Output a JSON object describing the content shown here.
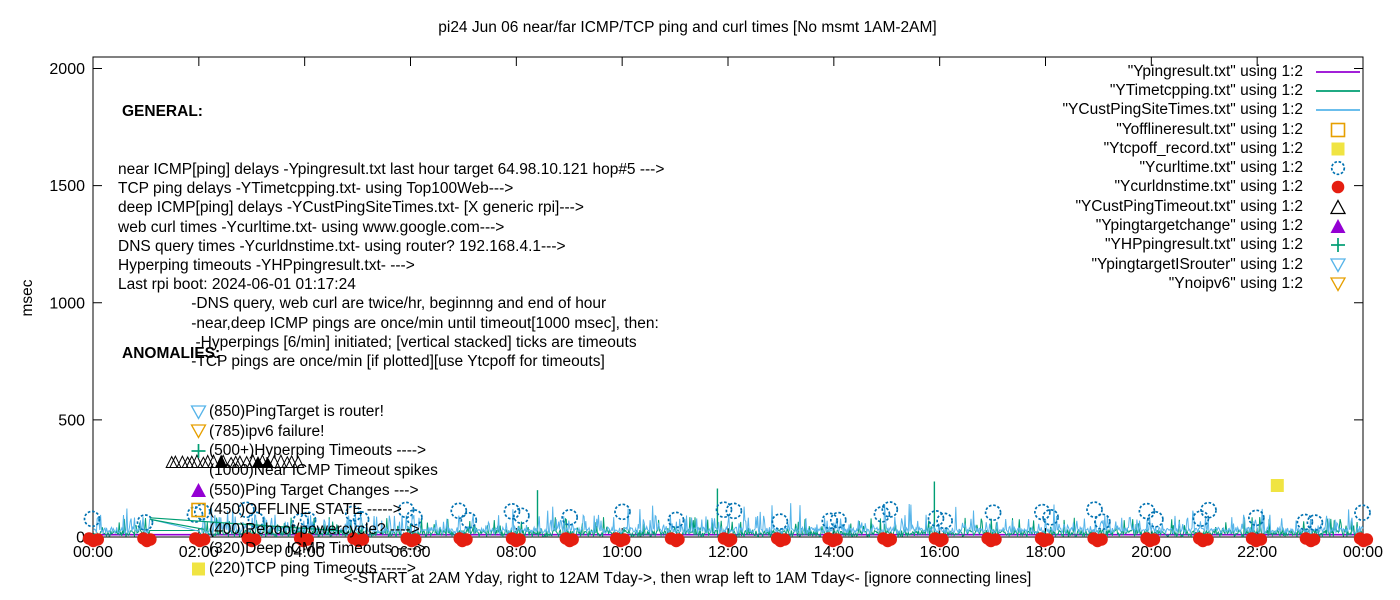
{
  "title": "pi24 Jun 06  near/far ICMP/TCP ping and curl times [No msmt 1AM-2AM]",
  "y_axis_label": "msec",
  "x_axis_label": "<-START at 2AM Yday, right to 12AM Tday->, then wrap left to 1AM Tday<- [ignore connecting lines]",
  "palette": {
    "purple": "#9400d3",
    "teal": "#009e73",
    "skyblue": "#56b4e9",
    "orange": "#e69f00",
    "yellow": "#f0e442",
    "blue": "#0072b2",
    "red": "#e51e10",
    "black": "#000000"
  },
  "general": {
    "heading": "GENERAL:",
    "lines": [
      "near ICMP[ping] delays -Ypingresult.txt last hour target 64.98.10.121 hop#5 --->",
      "TCP ping delays -YTimetcpping.txt- using Top100Web--->",
      "deep ICMP[ping] delays -YCustPingSiteTimes.txt- [X generic rpi]--->",
      "web curl times -Ycurltime.txt- using www.google.com--->",
      "DNS query times -Ycurldnstime.txt- using router? 192.168.4.1--->",
      "Hyperping timeouts -YHPpingresult.txt- --->",
      "Last rpi boot: 2024-06-01 01:17:24",
      "                 -DNS query, web curl are twice/hr, beginnng and end of hour",
      "                 -near,deep ICMP pings are once/min until timeout[1000 msec], then:",
      "                  -Hyperpings [6/min] initiated; [vertical stacked] ticks are timeouts",
      "                 -TCP pings are once/min [if plotted][use Ytcpoff for timeouts]"
    ]
  },
  "anomalies": {
    "heading": "ANOMALIES:",
    "items": [
      {
        "marker": "triangle-down-open",
        "color": "skyblue",
        "label": "(850)PingTarget is router!"
      },
      {
        "marker": "triangle-down-open",
        "color": "orange",
        "label": "(785)ipv6 failure!"
      },
      {
        "marker": "plus",
        "color": "teal",
        "label": "(500+)Hyperping Timeouts ---->"
      },
      {
        "marker": "none",
        "color": "black",
        "label": "(1000)Near ICMP Timeout spikes"
      },
      {
        "marker": "triangle-up-filled",
        "color": "purple",
        "label": "(550)Ping Target Changes --->"
      },
      {
        "marker": "square-open",
        "color": "orange",
        "label": "(450)OFFLINE STATE ----->"
      },
      {
        "marker": "none",
        "color": "black",
        "label": "(400)Reboot/powercycle? ---->"
      },
      {
        "marker": "none",
        "color": "black",
        "label": "(320)Deep ICMP Timeouts ---->"
      },
      {
        "marker": "square-filled",
        "color": "yellow",
        "label": "(220)TCP ping Timeouts ----->"
      }
    ]
  },
  "legend": {
    "entries": [
      {
        "label": "\"Ypingresult.txt\" using 1:2",
        "sample": "line",
        "color": "purple"
      },
      {
        "label": "\"YTimetcpping.txt\" using 1:2",
        "sample": "line",
        "color": "teal"
      },
      {
        "label": "\"YCustPingSiteTimes.txt\" using 1:2",
        "sample": "line",
        "color": "skyblue"
      },
      {
        "label": "\"Yofflineresult.txt\" using 1:2",
        "sample": "square-open",
        "color": "orange"
      },
      {
        "label": "\"Ytcpoff_record.txt\" using 1:2",
        "sample": "square-filled",
        "color": "yellow"
      },
      {
        "label": "\"Ycurltime.txt\" using 1:2",
        "sample": "circle-open",
        "color": "blue"
      },
      {
        "label": "\"Ycurldnstime.txt\" using 1:2",
        "sample": "circle-filled",
        "color": "red"
      },
      {
        "label": "\"YCustPingTimeout.txt\" using 1:2",
        "sample": "triangle-up-open",
        "color": "black"
      },
      {
        "label": "\"Ypingtargetchange\" using 1:2",
        "sample": "triangle-up-filled",
        "color": "purple"
      },
      {
        "label": "\"YHPpingresult.txt\" using 1:2",
        "sample": "plus",
        "color": "teal"
      },
      {
        "label": "\"YpingtargetISrouter\" using 1:2",
        "sample": "triangle-down-open",
        "color": "skyblue"
      },
      {
        "label": "\"Ynoipv6\" using 1:2",
        "sample": "triangle-down-open",
        "color": "orange"
      }
    ]
  },
  "chart_data": {
    "type": "line",
    "title": "pi24 Jun 06  near/far ICMP/TCP ping and curl times [No msmt 1AM-2AM]",
    "xlabel": "<-START at 2AM Yday, right to 12AM Tday->, then wrap left to 1AM Tday<- [ignore connecting lines]",
    "ylabel": "msec",
    "x_ticks": [
      "00:00",
      "02:00",
      "04:00",
      "06:00",
      "08:00",
      "10:00",
      "12:00",
      "14:00",
      "16:00",
      "18:00",
      "20:00",
      "22:00",
      "00:00"
    ],
    "x_hours_range": [
      0,
      24
    ],
    "y_ticks": [
      0,
      500,
      1000,
      1500,
      2000
    ],
    "y_max_msec": 2047,
    "grid": false,
    "legend_position": "top-right-outside",
    "no_measurement_gap_hours": [
      1.08,
      2.0
    ],
    "series": [
      {
        "name": "Ypingresult.txt",
        "style": "flat-line",
        "color_key": "purple",
        "flat_msec": 10
      },
      {
        "name": "YTimetcpping.txt",
        "style": "noise-line",
        "color_key": "teal",
        "base_msec": [
          2,
          30
        ],
        "spike_prob": 0.08,
        "spike_msec": [
          38,
          85
        ],
        "tall_spikes": [
          {
            "hour": 8.4,
            "msec": 200
          },
          {
            "hour": 11.8,
            "msec": 207
          },
          {
            "hour": 15.9,
            "msec": 237
          }
        ]
      },
      {
        "name": "YCustPingSiteTimes.txt",
        "style": "noise-line",
        "color_key": "skyblue",
        "base_msec": [
          16,
          42
        ],
        "spike_prob": 0.2,
        "spike_msec": [
          44,
          95
        ],
        "rare_spike_prob": 0.015,
        "rare_spike_msec": [
          105,
          145
        ]
      },
      {
        "name": "Ycurltime.txt",
        "style": "points-circle-open",
        "color_key": "blue",
        "schedule": "twice-hourly",
        "msec_range": [
          58,
          118
        ]
      },
      {
        "name": "Ycurldnstime.txt",
        "style": "points-circle-filled",
        "color_key": "red",
        "schedule": "twice-hourly",
        "msec_range": [
          0,
          5
        ]
      },
      {
        "name": "YCustPingTimeout.txt",
        "style": "points-triangle-open",
        "color_key": "black",
        "cluster": {
          "hour_range": [
            1.45,
            3.85
          ],
          "msec": 320,
          "count": 24
        }
      },
      {
        "name": "Ytcpoff_record.txt",
        "style": "points-square-filled",
        "color_key": "yellow",
        "points": [
          {
            "hour": 22.38,
            "msec": 220
          }
        ]
      }
    ],
    "connecting_line_artifacts": [
      {
        "color_key": "teal",
        "from": {
          "hour": 1.08,
          "msec": 75
        },
        "to": {
          "hour": 2.1,
          "msec": 33
        }
      },
      {
        "color_key": "teal",
        "from": {
          "hour": 1.08,
          "msec": 82
        },
        "to": {
          "hour": 4.75,
          "msec": 25
        }
      }
    ]
  }
}
